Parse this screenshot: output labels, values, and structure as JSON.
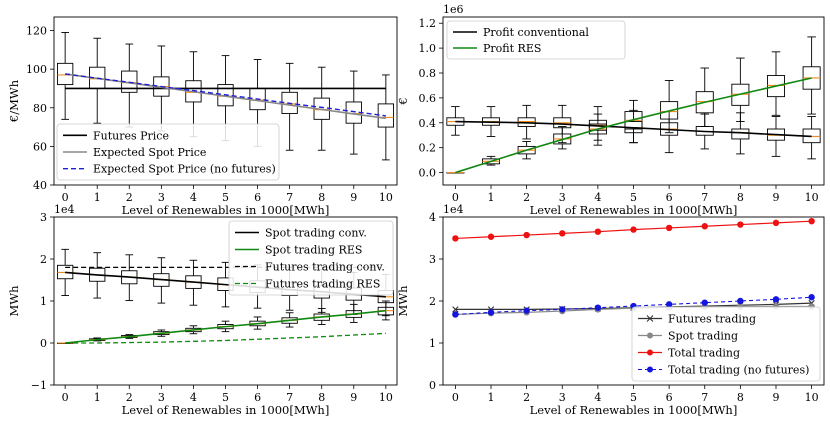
{
  "chart_data": [
    {
      "type": "box-line",
      "id": "prices",
      "xlabel": "Level of Renewables in 1000[MWh]",
      "ylabel": "€/MWh",
      "exponent": "",
      "ylim": [
        40,
        127
      ],
      "yticks": [
        40,
        60,
        80,
        100,
        120
      ],
      "ytick_labels": [
        "40",
        "60",
        "80",
        "100",
        "120"
      ],
      "x": [
        0,
        1,
        2,
        3,
        4,
        5,
        6,
        7,
        8,
        9,
        10
      ],
      "xtick_labels": [
        "0",
        "1",
        "2",
        "3",
        "4",
        "5",
        "6",
        "7",
        "8",
        "9",
        "10"
      ],
      "series": [
        {
          "name": "Futures Price",
          "color": "#000000",
          "dash": "",
          "width": 1.6,
          "marker": "",
          "values": [
            90,
            90,
            90,
            90,
            90,
            90,
            90,
            90,
            90,
            90,
            90
          ]
        },
        {
          "name": "Expected Spot Price",
          "color": "#888888",
          "dash": "",
          "width": 1.6,
          "marker": "",
          "values": [
            97.5,
            95.2,
            92.9,
            90.6,
            88.3,
            86,
            83.7,
            81.4,
            79.1,
            76.8,
            74.5
          ]
        },
        {
          "name": "Expected Spot Price (no futures)",
          "color": "#1f1fd6",
          "dash": "5,3",
          "width": 1.4,
          "marker": "",
          "values": [
            97.5,
            95.3,
            93.2,
            91,
            88.9,
            86.7,
            84.5,
            82.3,
            80.2,
            78,
            75.8
          ]
        }
      ],
      "boxes": [
        {
          "color": "#000000",
          "data": [
            [
              74,
              92,
              97,
              103,
              119
            ],
            [
              72,
              90,
              95,
              101,
              116
            ],
            [
              70,
              88,
              93,
              99,
              113
            ],
            [
              68,
              86,
              91,
              96,
              112
            ],
            [
              65,
              83,
              88,
              94,
              109
            ],
            [
              63,
              81,
              86,
              92,
              107
            ],
            [
              60,
              79,
              84,
              90,
              105
            ],
            [
              58,
              77,
              82,
              88,
              103
            ],
            [
              58,
              74,
              79,
              85,
              101
            ],
            [
              56,
              72,
              77,
              83,
              99
            ],
            [
              53,
              70,
              75,
              82,
              97
            ]
          ]
        }
      ],
      "legend": {
        "position": "lower-left",
        "entries": [
          "Futures Price",
          "Expected Spot Price",
          "Expected Spot Price (no futures)"
        ]
      }
    },
    {
      "type": "box-line",
      "id": "profits",
      "xlabel": "Level of Renewables in 1000[MWh]",
      "ylabel": "€",
      "exponent": "1e6",
      "ylim": [
        -0.1,
        1.25
      ],
      "yticks": [
        0,
        0.2,
        0.4,
        0.6,
        0.8,
        1.0,
        1.2
      ],
      "ytick_labels": [
        "0.0",
        "0.2",
        "0.4",
        "0.6",
        "0.8",
        "1.0",
        "1.2"
      ],
      "x": [
        0,
        1,
        2,
        3,
        4,
        5,
        6,
        7,
        8,
        9,
        10
      ],
      "xtick_labels": [
        "0",
        "1",
        "2",
        "3",
        "4",
        "5",
        "6",
        "7",
        "8",
        "9",
        "10"
      ],
      "series": [
        {
          "name": "Profit conventional",
          "color": "#000000",
          "dash": "",
          "width": 1.6,
          "marker": "",
          "values": [
            0.41,
            0.405,
            0.4,
            0.39,
            0.375,
            0.36,
            0.345,
            0.33,
            0.32,
            0.305,
            0.29
          ]
        },
        {
          "name": "Profit RES",
          "color": "#118811",
          "dash": "",
          "width": 1.6,
          "marker": "",
          "values": [
            0,
            0.09,
            0.18,
            0.265,
            0.35,
            0.425,
            0.495,
            0.565,
            0.63,
            0.695,
            0.76
          ]
        }
      ],
      "boxes": [
        {
          "color": "#000000",
          "data": [
            [
              0.3,
              0.38,
              0.41,
              0.44,
              0.53
            ],
            [
              0.29,
              0.38,
              0.41,
              0.44,
              0.53
            ],
            [
              0.27,
              0.37,
              0.41,
              0.44,
              0.54
            ],
            [
              0.24,
              0.36,
              0.4,
              0.44,
              0.54
            ],
            [
              0.22,
              0.34,
              0.38,
              0.42,
              0.53
            ],
            [
              0.24,
              0.32,
              0.36,
              0.41,
              0.5
            ],
            [
              0.16,
              0.3,
              0.35,
              0.4,
              0.49
            ],
            [
              0.19,
              0.3,
              0.33,
              0.37,
              0.47
            ],
            [
              0.15,
              0.27,
              0.32,
              0.35,
              0.48
            ],
            [
              0.13,
              0.26,
              0.3,
              0.35,
              0.45
            ],
            [
              0.11,
              0.24,
              0.29,
              0.35,
              0.45
            ]
          ]
        },
        {
          "color": "#000000",
          "data": [
            [
              0,
              0,
              0,
              0,
              0
            ],
            [
              0.06,
              0.07,
              0.09,
              0.11,
              0.13
            ],
            [
              0.11,
              0.15,
              0.18,
              0.21,
              0.25
            ],
            [
              0.19,
              0.23,
              0.27,
              0.31,
              0.37
            ],
            [
              0.26,
              0.31,
              0.35,
              0.39,
              0.47
            ],
            [
              0.24,
              0.35,
              0.42,
              0.49,
              0.58
            ],
            [
              0.32,
              0.43,
              0.49,
              0.57,
              0.74
            ],
            [
              0.37,
              0.48,
              0.57,
              0.65,
              0.84
            ],
            [
              0.41,
              0.54,
              0.63,
              0.71,
              0.92
            ],
            [
              0.46,
              0.61,
              0.7,
              0.78,
              0.97
            ],
            [
              0.47,
              0.67,
              0.76,
              0.85,
              1.09
            ]
          ]
        }
      ],
      "legend": {
        "position": "upper-left",
        "entries": [
          "Profit conventional",
          "Profit RES"
        ]
      }
    },
    {
      "type": "box-line",
      "id": "spot-futures-trading",
      "xlabel": "Level of Renewables in 1000[MWh]",
      "ylabel": "MWh",
      "exponent": "1e4",
      "ylim": [
        -1,
        3
      ],
      "yticks": [
        -1,
        0,
        1,
        2,
        3
      ],
      "ytick_labels": [
        "−1",
        "0",
        "1",
        "2",
        "3"
      ],
      "x": [
        0,
        1,
        2,
        3,
        4,
        5,
        6,
        7,
        8,
        9,
        10
      ],
      "xtick_labels": [
        "0",
        "1",
        "2",
        "3",
        "4",
        "5",
        "6",
        "7",
        "8",
        "9",
        "10"
      ],
      "series": [
        {
          "name": "Spot trading conv.",
          "color": "#000000",
          "dash": "",
          "width": 1.6,
          "marker": "",
          "values": [
            1.68,
            1.62,
            1.57,
            1.51,
            1.45,
            1.39,
            1.33,
            1.27,
            1.22,
            1.16,
            1.1
          ]
        },
        {
          "name": "Spot trading RES",
          "color": "#118811",
          "dash": "",
          "width": 1.6,
          "marker": "",
          "values": [
            0,
            0.08,
            0.15,
            0.23,
            0.31,
            0.39,
            0.46,
            0.54,
            0.62,
            0.69,
            0.77
          ]
        },
        {
          "name": "Futures trading conv.",
          "color": "#000000",
          "dash": "5,3",
          "width": 1.3,
          "marker": "",
          "values": [
            1.8,
            1.8,
            1.8,
            1.8,
            1.8,
            1.8,
            1.8,
            1.8,
            1.8,
            1.8,
            1.8
          ]
        },
        {
          "name": "Futures trading RES",
          "color": "#118811",
          "dash": "5,3",
          "width": 1.3,
          "marker": "",
          "values": [
            0,
            0,
            0.01,
            0.02,
            0.04,
            0.06,
            0.09,
            0.12,
            0.15,
            0.19,
            0.23
          ]
        }
      ],
      "boxes": [
        {
          "color": "#000000",
          "data": [
            [
              1.13,
              1.53,
              1.68,
              1.85,
              2.23
            ],
            [
              1.07,
              1.47,
              1.62,
              1.78,
              2.15
            ],
            [
              1.01,
              1.41,
              1.57,
              1.72,
              2.1
            ],
            [
              0.95,
              1.35,
              1.51,
              1.65,
              2.03
            ],
            [
              0.9,
              1.3,
              1.45,
              1.6,
              1.97
            ],
            [
              0.86,
              1.25,
              1.39,
              1.55,
              1.92
            ],
            [
              0.83,
              1.2,
              1.33,
              1.48,
              1.86
            ],
            [
              0.78,
              1.13,
              1.27,
              1.43,
              1.81
            ],
            [
              0.73,
              1.07,
              1.22,
              1.37,
              1.75
            ],
            [
              0.68,
              1.02,
              1.16,
              1.31,
              1.68
            ],
            [
              0.65,
              0.96,
              1.1,
              1.25,
              1.63
            ]
          ]
        },
        {
          "color": "#000000",
          "data": [
            [
              0,
              0,
              0,
              0,
              0
            ],
            [
              0.05,
              0.06,
              0.08,
              0.1,
              0.12
            ],
            [
              0.11,
              0.13,
              0.15,
              0.18,
              0.2
            ],
            [
              0.16,
              0.2,
              0.23,
              0.27,
              0.31
            ],
            [
              0.22,
              0.27,
              0.31,
              0.35,
              0.41
            ],
            [
              0.27,
              0.34,
              0.39,
              0.44,
              0.52
            ],
            [
              0.33,
              0.41,
              0.46,
              0.52,
              0.62
            ],
            [
              0.38,
              0.47,
              0.54,
              0.6,
              0.72
            ],
            [
              0.44,
              0.54,
              0.62,
              0.69,
              0.82
            ],
            [
              0.49,
              0.61,
              0.69,
              0.77,
              0.92
            ],
            [
              0.55,
              0.67,
              0.77,
              0.85,
              1.0
            ]
          ]
        }
      ],
      "legend": {
        "position": "upper-right",
        "entries": [
          "Spot trading conv.",
          "Spot trading RES",
          "Futures trading conv.",
          "Futures trading RES"
        ]
      }
    },
    {
      "type": "line",
      "id": "total-trading",
      "xlabel": "Level of Renewables in 1000[MWh]",
      "ylabel": "MWh",
      "exponent": "1e4",
      "ylim": [
        0,
        4
      ],
      "yticks": [
        0,
        1,
        2,
        3,
        4
      ],
      "ytick_labels": [
        "0",
        "1",
        "2",
        "3",
        "4"
      ],
      "x": [
        0,
        1,
        2,
        3,
        4,
        5,
        6,
        7,
        8,
        9,
        10
      ],
      "xtick_labels": [
        "0",
        "1",
        "2",
        "3",
        "4",
        "5",
        "6",
        "7",
        "8",
        "9",
        "10"
      ],
      "series": [
        {
          "name": "Futures trading",
          "color": "#333333",
          "dash": "",
          "width": 1.2,
          "marker": "x",
          "values": [
            1.8,
            1.8,
            1.8,
            1.81,
            1.82,
            1.84,
            1.86,
            1.88,
            1.9,
            1.92,
            1.95
          ]
        },
        {
          "name": "Spot trading",
          "color": "#888888",
          "dash": "",
          "width": 1.2,
          "marker": "o",
          "values": [
            1.68,
            1.71,
            1.73,
            1.76,
            1.8,
            1.83,
            1.85,
            1.86,
            1.87,
            1.87,
            1.87
          ]
        },
        {
          "name": "Total trading",
          "color": "#ee1111",
          "dash": "",
          "width": 1.2,
          "marker": "o",
          "values": [
            3.49,
            3.53,
            3.57,
            3.61,
            3.65,
            3.7,
            3.74,
            3.78,
            3.82,
            3.86,
            3.9
          ]
        },
        {
          "name": "Total trading (no futures)",
          "color": "#1515e0",
          "dash": "4,3",
          "width": 1.1,
          "marker": "o",
          "values": [
            1.68,
            1.73,
            1.77,
            1.8,
            1.84,
            1.88,
            1.92,
            1.96,
            2.0,
            2.04,
            2.09
          ]
        }
      ],
      "boxes": [],
      "legend": {
        "position": "lower-right",
        "entries": [
          "Futures trading",
          "Spot trading",
          "Total trading",
          "Total trading (no futures)"
        ]
      }
    }
  ]
}
